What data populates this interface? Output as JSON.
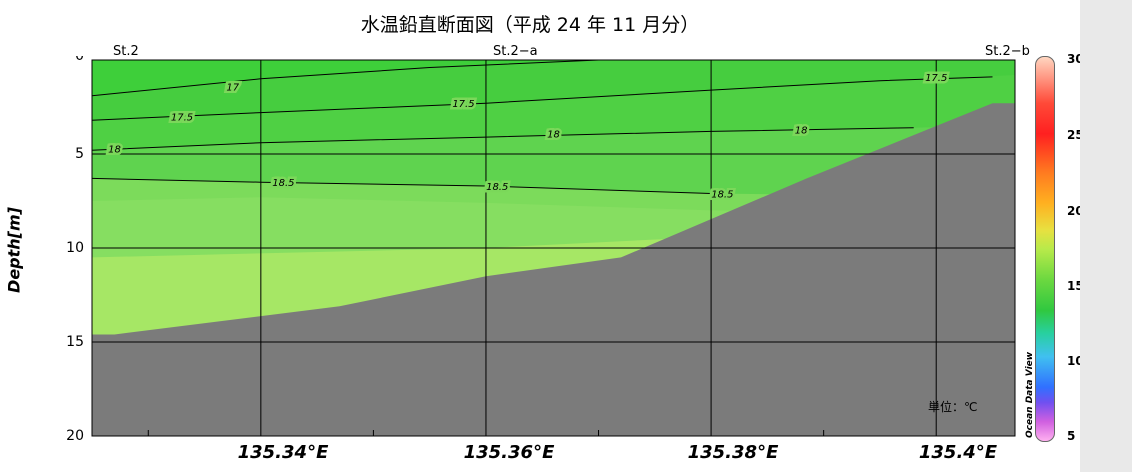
{
  "title": "水温鉛直断面図（平成 24 年 11 月分）",
  "unit_note": "単位：℃",
  "watermark": "Ocean Data View",
  "colors": {
    "seafloor": "#7b7b7b",
    "t17": "#3ecf3a",
    "t17_5": "#4fd044",
    "t18": "#5fd34f",
    "t18_5": "#86de61",
    "t19": "#a6e765"
  },
  "chart_data": {
    "type": "contour-section",
    "title": "水温鉛直断面図（平成 24 年 11 月分）",
    "ylabel": "Depth[m]",
    "xlabel": "",
    "xlim": [
      135.325,
      135.407
    ],
    "ylim": [
      0,
      20
    ],
    "y_inverted": true,
    "grid": true,
    "x_ticks": [
      "135.34°E",
      "135.36°E",
      "135.38°E",
      "135.4°E"
    ],
    "x_tick_values": [
      135.34,
      135.36,
      135.38,
      135.4
    ],
    "y_ticks": [
      "0",
      "5",
      "10",
      "15",
      "20"
    ],
    "y_tick_values": [
      0,
      5,
      10,
      15,
      20
    ],
    "stations": [
      {
        "name": "St.2",
        "x": 135.325
      },
      {
        "name": "St.2−a",
        "x": 135.36
      },
      {
        "name": "St.2−b",
        "x": 135.407
      }
    ],
    "seafloor_depth": [
      {
        "x": 135.325,
        "depth": 14.6
      },
      {
        "x": 135.327,
        "depth": 14.6
      },
      {
        "x": 135.347,
        "depth": 13.1
      },
      {
        "x": 135.36,
        "depth": 11.5
      },
      {
        "x": 135.372,
        "depth": 10.5
      },
      {
        "x": 135.3885,
        "depth": 6.3
      },
      {
        "x": 135.405,
        "depth": 2.3
      },
      {
        "x": 135.407,
        "depth": 2.3
      }
    ],
    "contours": [
      {
        "label": "17",
        "points": [
          [
            135.325,
            1.9
          ],
          [
            135.34,
            1.0
          ],
          [
            135.355,
            0.4
          ],
          [
            135.37,
            0.0
          ]
        ]
      },
      {
        "label": "17.5",
        "points": [
          [
            135.325,
            3.2
          ],
          [
            135.34,
            2.8
          ],
          [
            135.36,
            2.3
          ],
          [
            135.38,
            1.6
          ],
          [
            135.395,
            1.1
          ],
          [
            135.405,
            0.9
          ]
        ]
      },
      {
        "label": "17.5",
        "points": [
          [
            135.355,
            0.0
          ],
          [
            135.365,
            0.0
          ]
        ]
      },
      {
        "label": "18",
        "points": [
          [
            135.325,
            4.8
          ],
          [
            135.34,
            4.4
          ],
          [
            135.36,
            4.1
          ],
          [
            135.38,
            3.8
          ],
          [
            135.398,
            3.6
          ]
        ]
      },
      {
        "label": "18.5",
        "points": [
          [
            135.325,
            6.3
          ],
          [
            135.34,
            6.5
          ],
          [
            135.36,
            6.7
          ],
          [
            135.38,
            7.1
          ],
          [
            135.382,
            7.1
          ]
        ]
      }
    ],
    "contour_labels": [
      {
        "text": "17",
        "x": 135.3375,
        "y": 1.4
      },
      {
        "text": "17.5",
        "x": 135.333,
        "y": 3.0
      },
      {
        "text": "17.5",
        "x": 135.358,
        "y": 2.3
      },
      {
        "text": "17.5",
        "x": 135.4,
        "y": 0.9
      },
      {
        "text": "18",
        "x": 135.327,
        "y": 4.7
      },
      {
        "text": "18",
        "x": 135.366,
        "y": 3.9
      },
      {
        "text": "18",
        "x": 135.388,
        "y": 3.7
      },
      {
        "text": "18.5",
        "x": 135.342,
        "y": 6.5
      },
      {
        "text": "18.5",
        "x": 135.361,
        "y": 6.7
      },
      {
        "text": "18.5",
        "x": 135.381,
        "y": 7.1
      }
    ],
    "colorbar": {
      "min": 5,
      "max": 30,
      "ticks": [
        "30",
        "25",
        "20",
        "15",
        "10",
        "5"
      ],
      "tick_values": [
        30,
        25,
        20,
        15,
        10,
        5
      ]
    }
  }
}
